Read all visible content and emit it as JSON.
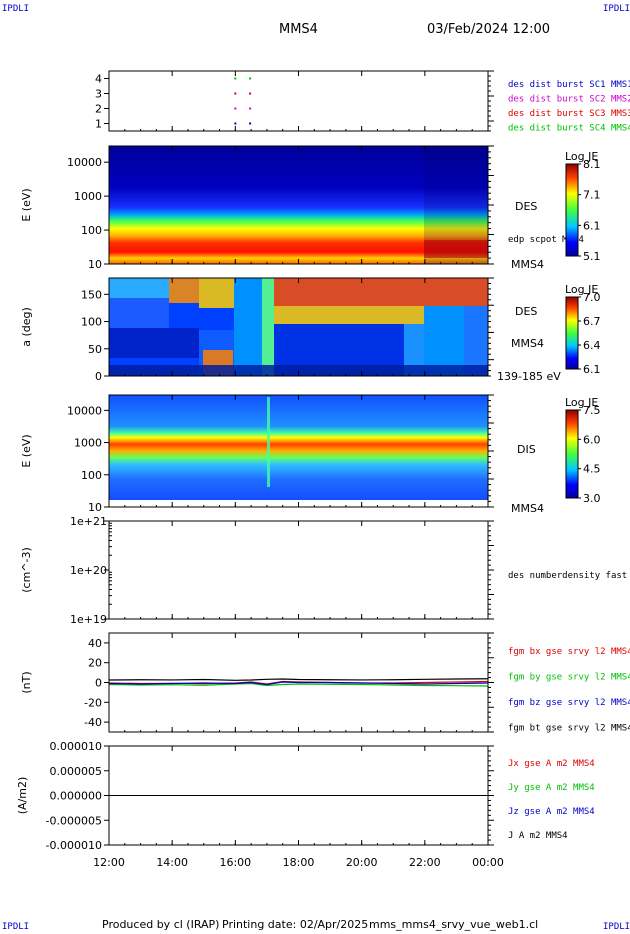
{
  "header": {
    "corner_label": "IPDLI",
    "title": "MMS4",
    "datetime": "03/Feb/2024 12:00"
  },
  "footer": {
    "produced": "Produced by cl (IRAP)",
    "printing": "Printing date: 02/Apr/2025",
    "file": "mms_mms4_srvy_vue_web1.cl"
  },
  "colors": {
    "blue": "#0000cc",
    "magenta": "#d000d0",
    "red": "#e00000",
    "green": "#00c000",
    "black": "#000000"
  },
  "chart_data": [
    {
      "type": "scatter",
      "id": "burst",
      "yticks": [
        "4",
        "3",
        "2",
        "1"
      ],
      "ylim": [
        0.5,
        4.5
      ],
      "legend": [
        {
          "text": "des dist burst SC1 MMS1",
          "color": "#0000cc"
        },
        {
          "text": "des dist burst SC2 MMS2",
          "color": "#d000d0"
        },
        {
          "text": "des dist burst SC3 MMS3",
          "color": "#e00000"
        },
        {
          "text": "des dist burst SC4 MMS4",
          "color": "#00c000"
        }
      ],
      "points": [
        {
          "x": "16:00",
          "y": 4,
          "color": "#00c000"
        },
        {
          "x": "16:28",
          "y": 4,
          "color": "#00c000"
        },
        {
          "x": "16:00",
          "y": 3,
          "color": "#e00000"
        },
        {
          "x": "16:28",
          "y": 3,
          "color": "#e00000"
        },
        {
          "x": "16:00",
          "y": 2,
          "color": "#d000d0"
        },
        {
          "x": "16:28",
          "y": 2,
          "color": "#d000d0"
        },
        {
          "x": "16:00",
          "y": 1,
          "color": "#0000cc"
        },
        {
          "x": "16:28",
          "y": 1,
          "color": "#0000cc"
        }
      ]
    },
    {
      "type": "heatmap",
      "id": "des_energy",
      "ylabel": "E (eV)",
      "yscale": "log",
      "ylim": [
        10,
        30000
      ],
      "yticks": [
        "10000",
        "1000",
        "100",
        "10"
      ],
      "right_labels": [
        "DES",
        "edp scpot MMS4",
        "MMS4"
      ],
      "colorbar": {
        "title": "Log JE",
        "ticks": [
          "8.1",
          "7.1",
          "6.1",
          "5.1"
        ],
        "range": [
          5.1,
          8.1
        ]
      }
    },
    {
      "type": "heatmap",
      "id": "des_pitch",
      "ylabel": "a (deg)",
      "ylim": [
        0,
        180
      ],
      "yticks": [
        "150",
        "100",
        "50",
        "0"
      ],
      "right_labels": [
        "DES",
        "MMS4",
        "139-185 eV"
      ],
      "colorbar": {
        "title": "Log JE",
        "ticks": [
          "7.0",
          "6.7",
          "6.4",
          "6.1"
        ],
        "range": [
          6.1,
          7.0
        ]
      }
    },
    {
      "type": "heatmap",
      "id": "dis_energy",
      "ylabel": "E (eV)",
      "yscale": "log",
      "ylim": [
        10,
        30000
      ],
      "yticks": [
        "10000",
        "1000",
        "100",
        "10"
      ],
      "right_labels": [
        "DIS",
        "MMS4"
      ],
      "colorbar": {
        "title": "Log JE",
        "ticks": [
          "7.5",
          "6.0",
          "4.5",
          "3.0"
        ],
        "range": [
          3.0,
          7.5
        ]
      }
    },
    {
      "type": "line",
      "id": "density",
      "ylabel": "(cm^-3)",
      "yscale": "log",
      "yticks": [
        "1e+21",
        "1e+20",
        "1e+19"
      ],
      "legend": [
        {
          "text": "des numberdensity fast M",
          "color": "#000000"
        }
      ]
    },
    {
      "type": "line",
      "id": "fgm",
      "ylabel": "(nT)",
      "ylim": [
        -50,
        50
      ],
      "yticks": [
        "40",
        "20",
        "0",
        "-20",
        "-40"
      ],
      "legend": [
        {
          "text": "fgm bx gse srvy l2 MMS4",
          "color": "#e00000"
        },
        {
          "text": "fgm by gse srvy l2 MMS4",
          "color": "#00c000"
        },
        {
          "text": "fgm bz gse srvy l2 MMS4",
          "color": "#0000cc"
        },
        {
          "text": "fgm bt gse srvy l2 MMS4",
          "color": "#000000"
        }
      ],
      "series": [
        {
          "name": "fgm bx gse srvy l2 MMS4",
          "color": "#e00000",
          "x": [
            "12:00",
            "13:00",
            "14:00",
            "15:00",
            "16:00",
            "16:30",
            "17:00",
            "17:30",
            "18:00",
            "19:00",
            "20:00",
            "21:00",
            "22:00",
            "23:00",
            "00:00"
          ],
          "values": [
            -0.5,
            -1,
            -0.8,
            -1.2,
            -0.5,
            0.5,
            -1.5,
            1,
            0.5,
            0,
            -0.5,
            -0.5,
            0,
            0.5,
            1
          ]
        },
        {
          "name": "fgm by gse srvy l2 MMS4",
          "color": "#00c000",
          "x": [
            "12:00",
            "13:00",
            "14:00",
            "15:00",
            "16:00",
            "16:30",
            "17:00",
            "17:30",
            "18:00",
            "19:00",
            "20:00",
            "21:00",
            "22:00",
            "23:00",
            "00:00"
          ],
          "values": [
            -2,
            -2.5,
            -2.2,
            -2.8,
            -1.5,
            -1,
            -3,
            -2,
            -1.5,
            -1.8,
            -2,
            -2.5,
            -3,
            -3.2,
            -3.5
          ]
        },
        {
          "name": "fgm bz gse srvy l2 MMS4",
          "color": "#0000cc",
          "x": [
            "12:00",
            "13:00",
            "14:00",
            "15:00",
            "16:00",
            "16:30",
            "17:00",
            "17:30",
            "18:00",
            "19:00",
            "20:00",
            "21:00",
            "22:00",
            "23:00",
            "00:00"
          ],
          "values": [
            -1,
            -1.5,
            -1,
            -0.5,
            -1,
            0,
            -2,
            0.5,
            0,
            0,
            -0.5,
            -1,
            -1.5,
            -1,
            -0.5
          ]
        },
        {
          "name": "fgm bt gse srvy l2 MMS4",
          "color": "#000000",
          "x": [
            "12:00",
            "13:00",
            "14:00",
            "15:00",
            "16:00",
            "16:30",
            "17:00",
            "17:30",
            "18:00",
            "19:00",
            "20:00",
            "21:00",
            "22:00",
            "23:00",
            "00:00"
          ],
          "values": [
            2.5,
            2.8,
            2.6,
            3,
            2.2,
            2.5,
            3.2,
            3.5,
            3,
            2.8,
            2.6,
            2.8,
            3.2,
            3.5,
            3.8
          ]
        }
      ]
    },
    {
      "type": "line",
      "id": "current",
      "ylabel": "(A/m2)",
      "ylim": [
        -1e-05,
        1e-05
      ],
      "yticks": [
        "0.000010",
        "0.000005",
        "0.000000",
        "-0.000005",
        "-0.000010"
      ],
      "legend": [
        {
          "text": "Jx gse A m2 MMS4",
          "color": "#e00000"
        },
        {
          "text": "Jy gse A m2 MMS4",
          "color": "#00c000"
        },
        {
          "text": "Jz gse A m2 MMS4",
          "color": "#0000cc"
        },
        {
          "text": "J A m2 MMS4",
          "color": "#000000"
        }
      ],
      "series": [
        {
          "name": "J A m2 MMS4",
          "color": "#000000",
          "x": [
            "12:00",
            "18:00",
            "00:00"
          ],
          "values": [
            0,
            0,
            0
          ]
        }
      ]
    }
  ],
  "xaxis": {
    "ticks": [
      "12:00",
      "14:00",
      "16:00",
      "18:00",
      "20:00",
      "22:00",
      "00:00"
    ]
  }
}
